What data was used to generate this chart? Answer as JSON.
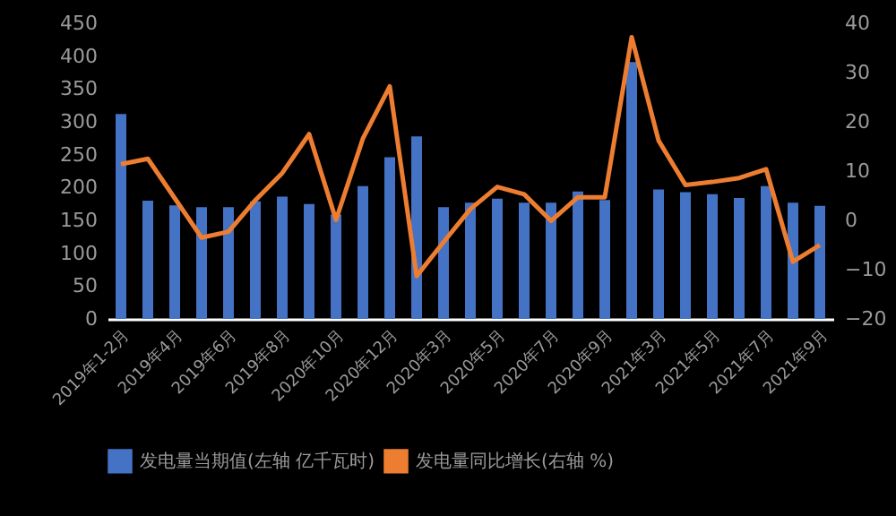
{
  "chart_data": {
    "type": "bar",
    "categories": [
      "2019年1-2月",
      null,
      "2019年4月",
      null,
      "2019年6月",
      null,
      "2019年8月",
      null,
      "2020年10月",
      null,
      "2020年12月",
      null,
      "2020年3月",
      null,
      "2020年5月",
      null,
      "2020年7月",
      null,
      "2020年9月",
      null,
      "2021年3月",
      null,
      "2021年5月",
      null,
      "2021年7月",
      null,
      "2021年9月"
    ],
    "series": [
      {
        "name": "发电量当期值(左轴 亿千瓦时)",
        "color": "#4472c4",
        "values": [
          312,
          180,
          173,
          170,
          170,
          179,
          186,
          175,
          159,
          202,
          246,
          278,
          170,
          177,
          183,
          177,
          177,
          194,
          181,
          391,
          197,
          193,
          190,
          184,
          202,
          177,
          172
        ]
      },
      {
        "name": "发电量同比增长(右轴 %)",
        "type": "line",
        "axis": "y2",
        "color": "#ed7d31",
        "values": [
          11.4,
          12.5,
          4.5,
          -3.5,
          -2.3,
          4.1,
          9.6,
          17.5,
          0.1,
          16.6,
          27.2,
          -11.3,
          -4.4,
          2.3,
          6.8,
          5.3,
          -0.1,
          4.7,
          4.7,
          37.2,
          16.2,
          7.2,
          7.8,
          8.6,
          10.4,
          -8.4,
          -5
        ]
      }
    ],
    "ylim": [
      0,
      450
    ],
    "yticks": [
      0,
      50,
      100,
      150,
      200,
      250,
      300,
      350,
      400,
      450
    ],
    "y2lim": [
      -20,
      40
    ],
    "y2ticks": [
      -20,
      -10,
      0,
      10,
      20,
      30,
      40
    ],
    "legend": "bottom"
  }
}
